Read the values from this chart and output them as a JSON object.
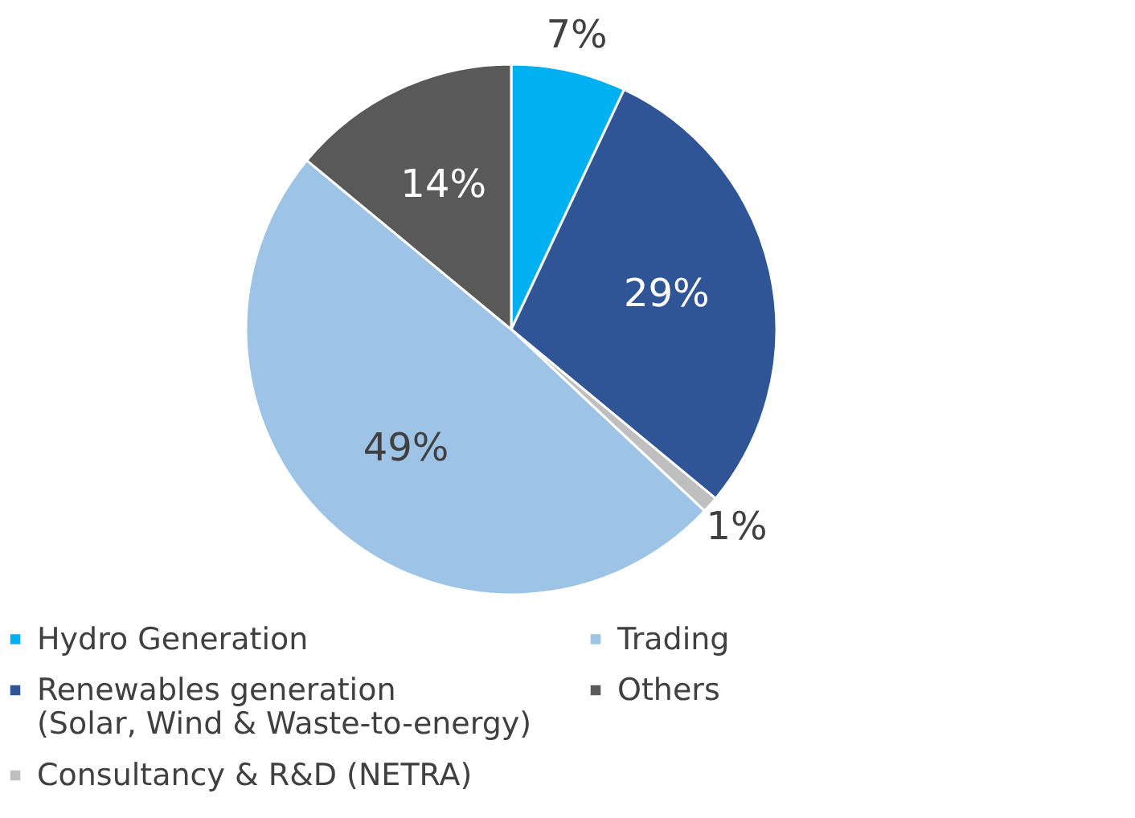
{
  "chart_data": {
    "type": "pie",
    "categories": [
      "Hydro Generation",
      "Renewables generation\n(Solar, Wind & Waste-to-energy)",
      "Consultancy & R&D (NETRA)",
      "Trading",
      "Others"
    ],
    "values": [
      7,
      29,
      1,
      49,
      14
    ],
    "colors": [
      "#00b0f0",
      "#2f5597",
      "#bfbfbf",
      "#9dc3e6",
      "#595959"
    ],
    "value_labels": [
      "7%",
      "29%",
      "1%",
      "49%",
      "14%"
    ],
    "legend": "bottom"
  }
}
